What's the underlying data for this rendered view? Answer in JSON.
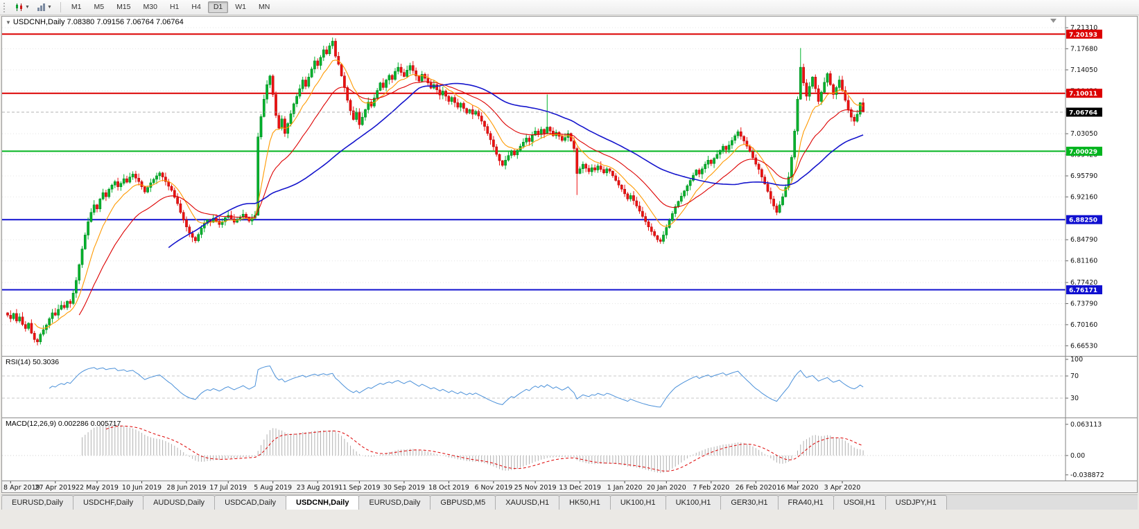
{
  "toolbar": {
    "timeframes": [
      "M1",
      "M5",
      "M15",
      "M30",
      "H1",
      "H4",
      "D1",
      "W1",
      "MN"
    ],
    "active": "D1"
  },
  "tabs": {
    "active_index": 4,
    "items": [
      "EURUSD,Daily",
      "USDCHF,Daily",
      "AUDUSD,Daily",
      "USDCAD,Daily",
      "USDCNH,Daily",
      "EURUSD,Daily",
      "GBPUSD,M5",
      "XAUUSD,H1",
      "HK50,H1",
      "UK100,H1",
      "UK100,H1",
      "GER30,H1",
      "FRA40,H1",
      "USOil,H1",
      "USDJPY,H1"
    ]
  },
  "chart_data": {
    "type": "candlestick",
    "symbol": "USDCNH",
    "timeframe": "Daily",
    "info_line": "USDCNH,Daily 7.08380 7.09156 7.06764 7.06764",
    "ohlc_display": [
      "7.08380",
      "7.09156",
      "7.06764",
      "7.06764"
    ],
    "price_range": [
      6.655,
      7.225
    ],
    "price_axis_labels": [
      "7.21310",
      "7.17680",
      "7.14050",
      "7.10420",
      "7.03050",
      "6.99420",
      "6.95790",
      "6.92160",
      "6.84790",
      "6.81160",
      "6.77420",
      "6.73790",
      "6.70160",
      "6.66530"
    ],
    "levels": [
      {
        "value": 7.20193,
        "label": "7.20193",
        "color": "#dc0000"
      },
      {
        "value": 7.10011,
        "label": "7.10011",
        "color": "#dc0000"
      },
      {
        "value": 7.00029,
        "label": "7.00029",
        "color": "#00b41e"
      },
      {
        "value": 6.8825,
        "label": "6.88250",
        "color": "#1010d0"
      },
      {
        "value": 6.76171,
        "label": "6.76171",
        "color": "#1010d0"
      }
    ],
    "current": {
      "value": 7.06764,
      "label": "7.06764",
      "box_color": "#000000"
    },
    "candles": {
      "up_color": "#00b22c",
      "down_color": "#ee1111",
      "first_open": 6.722,
      "closes": [
        6.718,
        6.712,
        6.721,
        6.708,
        6.715,
        6.702,
        6.695,
        6.704,
        6.687,
        6.676,
        6.672,
        6.685,
        6.693,
        6.701,
        6.712,
        6.722,
        6.718,
        6.728,
        6.735,
        6.731,
        6.742,
        6.738,
        6.756,
        6.778,
        6.805,
        6.832,
        6.856,
        6.879,
        6.895,
        6.908,
        6.901,
        6.918,
        6.929,
        6.922,
        6.935,
        6.942,
        6.948,
        6.939,
        6.945,
        6.953,
        6.947,
        6.956,
        6.961,
        6.954,
        6.948,
        6.939,
        6.93,
        6.938,
        6.946,
        6.952,
        6.958,
        6.963,
        6.956,
        6.948,
        6.94,
        6.933,
        6.921,
        6.91,
        6.895,
        6.882,
        6.87,
        6.859,
        6.852,
        6.846,
        6.857,
        6.868,
        6.876,
        6.882,
        6.878,
        6.885,
        6.88,
        6.874,
        6.879,
        6.886,
        6.89,
        6.884,
        6.878,
        6.883,
        6.887,
        6.892,
        6.886,
        6.88,
        6.885,
        6.89,
        7.025,
        7.06,
        7.09,
        7.115,
        7.13,
        7.098,
        7.062,
        7.04,
        7.056,
        7.031,
        7.048,
        7.065,
        7.082,
        7.095,
        7.108,
        7.123,
        7.112,
        7.128,
        7.142,
        7.156,
        7.148,
        7.162,
        7.175,
        7.168,
        7.182,
        7.19,
        7.164,
        7.15,
        7.13,
        7.11,
        7.088,
        7.07,
        7.055,
        7.068,
        7.046,
        7.059,
        7.072,
        7.085,
        7.078,
        7.092,
        7.105,
        7.118,
        7.11,
        7.123,
        7.131,
        7.124,
        7.138,
        7.145,
        7.136,
        7.129,
        7.14,
        7.148,
        7.139,
        7.13,
        7.121,
        7.133,
        7.126,
        7.118,
        7.109,
        7.115,
        7.106,
        7.097,
        7.104,
        7.095,
        7.086,
        7.093,
        7.084,
        7.076,
        7.083,
        7.074,
        7.066,
        7.072,
        7.064,
        7.069,
        7.061,
        7.052,
        7.043,
        7.031,
        7.02,
        7.008,
        6.995,
        6.984,
        6.976,
        6.985,
        6.993,
        7.001,
        6.994,
        7.002,
        7.009,
        7.016,
        7.023,
        7.017,
        7.028,
        7.035,
        7.029,
        7.038,
        7.031,
        7.042,
        7.035,
        7.027,
        7.033,
        7.026,
        7.019,
        7.024,
        7.031,
        7.018,
        7.005,
        6.962,
        6.97,
        6.978,
        6.971,
        6.965,
        6.972,
        6.968,
        6.975,
        6.969,
        6.963,
        6.97,
        6.966,
        6.958,
        6.95,
        6.942,
        6.935,
        6.927,
        6.918,
        6.924,
        6.915,
        6.906,
        6.897,
        6.888,
        6.879,
        6.87,
        6.862,
        6.855,
        6.848,
        6.845,
        6.856,
        6.869,
        6.881,
        6.893,
        6.905,
        6.914,
        6.923,
        6.932,
        6.941,
        6.95,
        6.959,
        6.968,
        6.961,
        6.97,
        6.978,
        6.985,
        6.979,
        6.988,
        6.995,
        7.002,
        7.009,
        7.003,
        7.011,
        7.019,
        7.027,
        7.034,
        7.026,
        7.018,
        7.009,
        7.0,
        6.989,
        6.978,
        6.969,
        6.956,
        6.944,
        6.931,
        6.918,
        6.906,
        6.895,
        6.908,
        6.922,
        6.938,
        6.956,
        6.99,
        7.035,
        7.09,
        7.145,
        7.118,
        7.095,
        7.112,
        7.128,
        7.108,
        7.086,
        7.102,
        7.119,
        7.134,
        7.115,
        7.098,
        7.11,
        7.123,
        7.105,
        7.088,
        7.072,
        7.059,
        7.052,
        7.064,
        7.0838,
        7.06764
      ],
      "last_ohlc": [
        7.0838,
        7.09156,
        7.06764,
        7.06764
      ],
      "wick_overrides": {
        "10": {
          "low": 6.666
        },
        "84": {
          "low": 6.889
        },
        "109": {
          "high": 7.196
        },
        "181": {
          "high": 7.098
        },
        "191": {
          "low": 6.925
        },
        "219": {
          "low": 6.841
        },
        "266": {
          "high": 7.178
        }
      }
    },
    "moving_averages": [
      {
        "type": "ema",
        "period": 10,
        "color": "#ff9900"
      },
      {
        "type": "ema",
        "period": 25,
        "color": "#dd0000"
      },
      {
        "type": "sma",
        "period": 55,
        "color": "#1414cc"
      }
    ],
    "dates": [
      "8 Apr 2019",
      "27 Apr 2019",
      "22 May 2019",
      "10 Jun 2019",
      "28 Jun 2019",
      "17 Jul 2019",
      "5 Aug 2019",
      "23 Aug 2019",
      "11 Sep 2019",
      "30 Sep 2019",
      "18 Oct 2019",
      "6 Nov 2019",
      "25 Nov 2019",
      "13 Dec 2019",
      "1 Jan 2020",
      "20 Jan 2020",
      "7 Feb 2020",
      "26 Feb 2020",
      "16 Mar 2020",
      "3 Apr 2020"
    ],
    "rsi": {
      "label": "RSI(14) 50.3036",
      "period": 14,
      "axis_labels": [
        "100",
        "70",
        "30"
      ],
      "levels": [
        70,
        30
      ],
      "color": "#4a90d9"
    },
    "macd": {
      "label": "MACD(12,26,9) 0.002286 0.005717",
      "fast": 12,
      "slow": 26,
      "signal": 9,
      "axis_labels": [
        "0.063113",
        "0.00",
        "-0.038872"
      ],
      "range": [
        -0.042,
        0.067
      ],
      "bar_color": "#b0b0b0",
      "signal_color": "#dd0000"
    }
  }
}
